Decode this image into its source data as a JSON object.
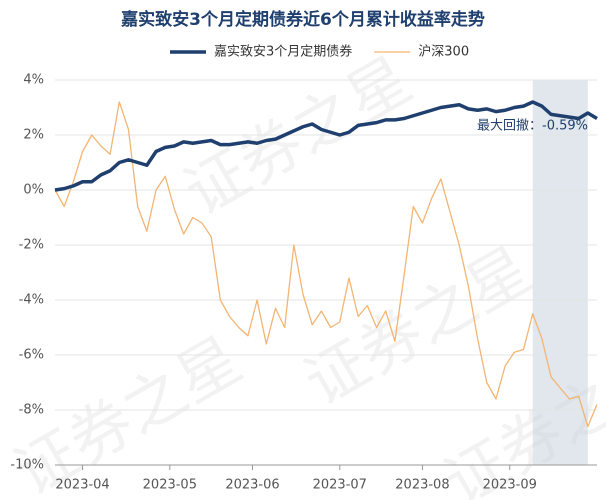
{
  "chart_data": {
    "type": "line",
    "title": "嘉实致安3个月定期债券近6个月累计收益率走势",
    "annotation": "最大回撤：-0.59%",
    "watermark": "证券之星",
    "x": [
      0,
      1,
      2,
      3,
      4,
      5,
      6,
      7,
      8,
      9,
      10,
      11,
      12,
      13,
      14,
      15,
      16,
      17,
      18,
      19,
      20,
      21,
      22,
      23,
      24,
      25,
      26,
      27,
      28,
      29,
      30,
      31,
      32,
      33,
      34,
      35,
      36,
      37,
      38,
      39,
      40,
      41,
      42,
      43,
      44,
      45,
      46,
      47,
      48,
      49,
      50,
      51,
      52,
      53,
      54,
      55,
      56,
      57,
      58,
      59
    ],
    "series": [
      {
        "name": "嘉实致安3个月定期债券",
        "color": "#1f3f6e",
        "width": 3.5,
        "values": [
          0,
          0.05,
          0.15,
          0.3,
          0.3,
          0.55,
          0.7,
          1.0,
          1.1,
          1.0,
          0.9,
          1.4,
          1.55,
          1.6,
          1.75,
          1.7,
          1.75,
          1.8,
          1.65,
          1.65,
          1.7,
          1.75,
          1.7,
          1.8,
          1.85,
          2.0,
          2.15,
          2.3,
          2.4,
          2.2,
          2.1,
          2.0,
          2.1,
          2.35,
          2.4,
          2.45,
          2.55,
          2.55,
          2.6,
          2.7,
          2.8,
          2.9,
          3.0,
          3.05,
          3.1,
          2.95,
          2.9,
          2.95,
          2.85,
          2.9,
          3.0,
          3.05,
          3.2,
          3.05,
          2.75,
          2.7,
          2.65,
          2.6,
          2.8,
          2.6
        ]
      },
      {
        "name": "沪深300",
        "color": "#f2b574",
        "width": 1.3,
        "values": [
          0,
          -0.6,
          0.3,
          1.4,
          2.0,
          1.6,
          1.3,
          3.2,
          2.2,
          -0.6,
          -1.5,
          0.0,
          0.5,
          -0.7,
          -1.6,
          -1.0,
          -1.2,
          -1.7,
          -4.0,
          -4.6,
          -5.0,
          -5.3,
          -4.0,
          -5.6,
          -4.3,
          -5.0,
          -2.0,
          -3.8,
          -4.9,
          -4.4,
          -5.0,
          -4.8,
          -3.2,
          -4.6,
          -4.2,
          -5.0,
          -4.4,
          -5.5,
          -3.1,
          -0.6,
          -1.2,
          -0.3,
          0.4,
          -0.8,
          -2.0,
          -3.5,
          -5.4,
          -7.0,
          -7.6,
          -6.4,
          -5.9,
          -5.8,
          -4.5,
          -5.4,
          -6.8,
          -7.2,
          -7.6,
          -7.5,
          -8.6,
          -7.8
        ]
      }
    ],
    "shaded_x": [
      52,
      58
    ],
    "xlim": [
      0,
      59
    ],
    "xticks": [
      {
        "value": 3,
        "label": "2023-04"
      },
      {
        "value": 12.5,
        "label": "2023-05"
      },
      {
        "value": 21.5,
        "label": "2023-06"
      },
      {
        "value": 31,
        "label": "2023-07"
      },
      {
        "value": 40,
        "label": "2023-08"
      },
      {
        "value": 49.5,
        "label": "2023-09"
      }
    ],
    "ylim": [
      -10,
      4
    ],
    "yticks": [
      {
        "value": -10,
        "label": "-10%"
      },
      {
        "value": -8,
        "label": "-8%"
      },
      {
        "value": -6,
        "label": "-6%"
      },
      {
        "value": -4,
        "label": "-4%"
      },
      {
        "value": -2,
        "label": "-2%"
      },
      {
        "value": 0,
        "label": "0%"
      },
      {
        "value": 2,
        "label": "2%"
      },
      {
        "value": 4,
        "label": "4%"
      }
    ],
    "grid": true
  }
}
